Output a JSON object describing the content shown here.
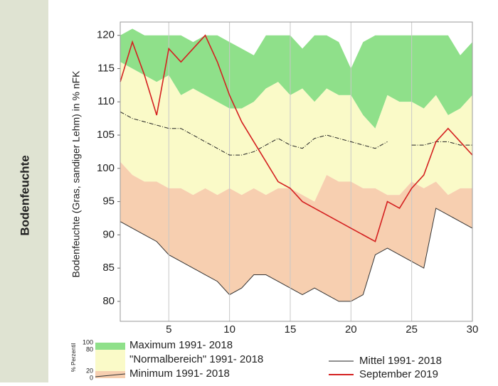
{
  "chart_data": {
    "type": "band",
    "panel_label": "Bodenfeuchte",
    "y_label": "Bodenfeuchte (Gras, sandiger Lehm) in % nFK",
    "x": [
      1,
      2,
      3,
      4,
      5,
      6,
      7,
      8,
      9,
      10,
      11,
      12,
      13,
      14,
      15,
      16,
      17,
      18,
      19,
      20,
      21,
      22,
      23,
      24,
      25,
      26,
      27,
      28,
      29,
      30
    ],
    "xlim": [
      1,
      30
    ],
    "xticks": [
      5,
      10,
      15,
      20,
      25,
      30
    ],
    "ylim": [
      77,
      122
    ],
    "yticks": [
      80,
      85,
      90,
      95,
      100,
      105,
      110,
      115,
      120
    ],
    "grid": "x",
    "bands": [
      {
        "name": "Maximum 1991- 2018",
        "color": "#8fe08a",
        "upper": [
          120,
          121,
          120,
          120,
          120,
          120,
          119,
          120,
          120,
          119,
          118,
          117,
          120,
          120,
          120,
          118,
          120,
          120,
          119,
          115,
          119,
          120,
          120,
          120,
          120,
          120,
          120,
          120,
          117,
          119
        ],
        "lower": [
          116,
          115,
          114,
          113,
          114,
          111,
          112,
          111,
          110,
          109,
          109,
          110,
          112,
          113,
          111,
          112,
          110,
          112,
          111,
          111,
          108,
          106,
          111,
          110,
          110,
          109,
          111,
          108,
          109,
          111
        ]
      },
      {
        "name": "\"Normalbereich\" 1991- 2018",
        "color": "#fafac8",
        "upper": [
          116,
          115,
          114,
          113,
          114,
          111,
          112,
          111,
          110,
          109,
          109,
          110,
          112,
          113,
          111,
          112,
          110,
          112,
          111,
          111,
          108,
          106,
          111,
          110,
          110,
          109,
          111,
          108,
          109,
          111
        ],
        "lower": [
          101,
          99,
          98,
          98,
          97,
          97,
          96,
          97,
          96,
          97,
          96,
          97,
          96,
          97,
          97,
          96,
          95,
          99,
          98,
          98,
          97,
          97,
          96,
          96,
          98,
          97,
          98,
          96,
          97,
          97
        ]
      },
      {
        "name": "Minimum 1991- 2018",
        "color": "#f7cfb0",
        "upper": [
          101,
          99,
          98,
          98,
          97,
          97,
          96,
          97,
          96,
          97,
          96,
          97,
          96,
          97,
          97,
          96,
          95,
          99,
          98,
          98,
          97,
          97,
          96,
          96,
          98,
          97,
          98,
          96,
          97,
          97
        ],
        "lower": [
          92,
          91,
          90,
          89,
          87,
          86,
          85,
          84,
          83,
          81,
          82,
          84,
          84,
          83,
          82,
          81,
          82,
          81,
          80,
          80,
          81,
          87,
          88,
          87,
          86,
          85,
          94,
          93,
          92,
          91
        ]
      }
    ],
    "series": [
      {
        "name": "Mittel 1991- 2018",
        "color": "#222222",
        "values": [
          108.5,
          107.5,
          107,
          106.5,
          106,
          106,
          105,
          104,
          103,
          102,
          102,
          102.5,
          103.5,
          104.5,
          103.5,
          103,
          104.5,
          105,
          104.5,
          104,
          103.5,
          103,
          104,
          null,
          103.5,
          103.5,
          104,
          104,
          103.5,
          103.5
        ]
      },
      {
        "name": "September 2019",
        "color": "#d42020",
        "values": [
          113,
          119,
          114,
          108,
          118,
          116,
          118,
          120,
          116,
          111,
          107,
          104,
          101,
          98,
          97,
          95,
          94,
          93,
          92,
          91,
          90,
          89,
          95,
          94,
          97,
          99,
          104,
          106,
          104,
          102
        ]
      }
    ],
    "legend_scale": {
      "label": "% Perzentil",
      "ticks": [
        100,
        80,
        20,
        0
      ]
    }
  }
}
